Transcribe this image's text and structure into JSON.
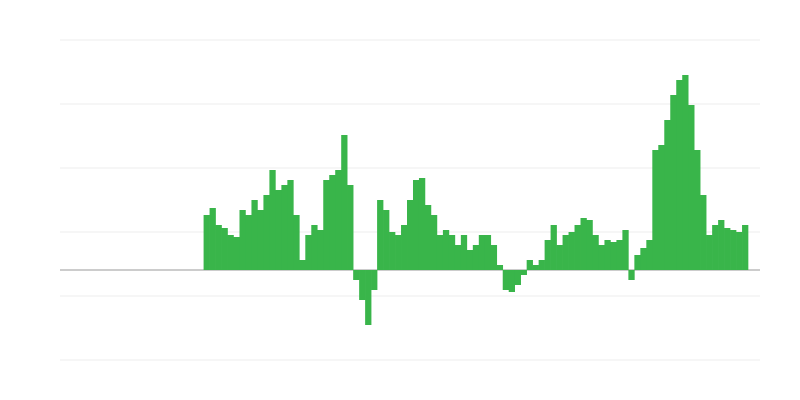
{
  "chart_data": {
    "type": "bar",
    "color": "#39b54a",
    "grid": true,
    "ylim": [
      -90,
      230
    ],
    "yticks": [
      -90,
      -26,
      38,
      102,
      166,
      230
    ],
    "categories": [
      null,
      null,
      null,
      null,
      null,
      null,
      null,
      null,
      null,
      null,
      null,
      null,
      null,
      null,
      null,
      null,
      null,
      null,
      null,
      null,
      null,
      null,
      null,
      null,
      null,
      null,
      null,
      null,
      null,
      null,
      null,
      null,
      null,
      null,
      null,
      null,
      null,
      null,
      null,
      null,
      null,
      null,
      null,
      null,
      null,
      null,
      null,
      null,
      null,
      null,
      null,
      null,
      null,
      null,
      null,
      null,
      null,
      null,
      null,
      null,
      null,
      null,
      null,
      null,
      null,
      null,
      null,
      null,
      null,
      null,
      null,
      null,
      null,
      null,
      null,
      null,
      null,
      null,
      null,
      null,
      null,
      null,
      null,
      null,
      null,
      null,
      null,
      null,
      null,
      null,
      null,
      null,
      null,
      null,
      null,
      null,
      null,
      null,
      null,
      null,
      null,
      null,
      null,
      null,
      null,
      null,
      null,
      null,
      null,
      null,
      null,
      null,
      null,
      null,
      null,
      null,
      null
    ],
    "values": [
      null,
      null,
      null,
      null,
      null,
      null,
      null,
      null,
      null,
      null,
      null,
      null,
      null,
      null,
      null,
      null,
      null,
      null,
      null,
      null,
      null,
      null,
      null,
      null,
      55,
      62,
      45,
      42,
      35,
      33,
      60,
      55,
      70,
      60,
      75,
      100,
      80,
      85,
      90,
      55,
      10,
      35,
      45,
      40,
      90,
      95,
      100,
      135,
      85,
      -10,
      -30,
      -55,
      -20,
      70,
      60,
      38,
      35,
      45,
      70,
      90,
      92,
      65,
      55,
      35,
      40,
      35,
      25,
      35,
      20,
      25,
      35,
      35,
      25,
      5,
      -20,
      -22,
      -15,
      -5,
      10,
      5,
      10,
      30,
      45,
      25,
      35,
      38,
      45,
      52,
      50,
      35,
      25,
      30,
      28,
      30,
      40,
      -10,
      15,
      22,
      30,
      120,
      125,
      150,
      175,
      190,
      195,
      165,
      120,
      75,
      35,
      45,
      50,
      42,
      40,
      38,
      45,
      null,
      null
    ]
  }
}
